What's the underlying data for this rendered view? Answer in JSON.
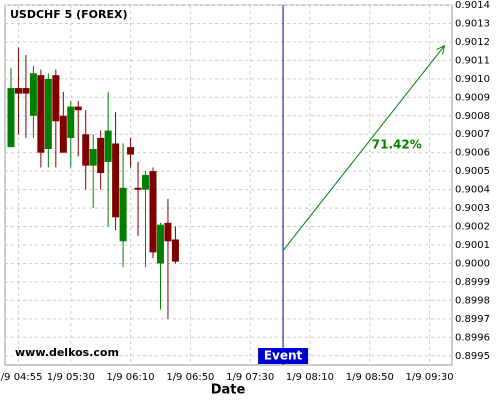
{
  "chart_data": {
    "type": "candlestick",
    "title": "USDCHF 5 (FOREX)",
    "x_label": "Date",
    "watermark": "www.delkos.com",
    "up_color": "#008000",
    "down_color": "#800000",
    "grid": true,
    "x": [
      "1/9 04:50",
      "1/9 04:55",
      "1/9 05:00",
      "1/9 05:05",
      "1/9 05:10",
      "1/9 05:15",
      "1/9 05:20",
      "1/9 05:25",
      "1/9 05:30",
      "1/9 05:35",
      "1/9 05:40",
      "1/9 05:45",
      "1/9 05:50",
      "1/9 05:55",
      "1/9 06:00",
      "1/9 06:05",
      "1/9 06:10",
      "1/9 06:15",
      "1/9 06:20",
      "1/9 06:25",
      "1/9 06:30",
      "1/9 06:35",
      "1/9 06:40"
    ],
    "open": [
      0.90063,
      0.90095,
      0.90095,
      0.9008,
      0.90102,
      0.90062,
      0.90102,
      0.9008,
      0.90068,
      0.90085,
      0.9007,
      0.90053,
      0.90068,
      0.90055,
      0.90065,
      0.90012,
      0.90063,
      0.90041,
      0.9004,
      0.9005,
      0.9,
      0.90022,
      0.90013
    ],
    "high": [
      0.90106,
      0.90117,
      0.90113,
      0.90107,
      0.90105,
      0.90103,
      0.90105,
      0.90093,
      0.90088,
      0.90088,
      0.90083,
      0.9007,
      0.90072,
      0.90093,
      0.90082,
      0.90065,
      0.90068,
      0.90055,
      0.9005,
      0.90052,
      0.90022,
      0.90035,
      0.9002
    ],
    "low": [
      0.90063,
      0.9007,
      0.90068,
      0.90068,
      0.90052,
      0.90052,
      0.90052,
      0.9006,
      0.90052,
      0.90058,
      0.9004,
      0.9003,
      0.9004,
      0.9002,
      0.90018,
      0.89998,
      0.90052,
      0.90015,
      0.89998,
      0.90003,
      0.89975,
      0.8997,
      0.9
    ],
    "close": [
      0.90095,
      0.90092,
      0.90092,
      0.90103,
      0.9006,
      0.901,
      0.90077,
      0.9006,
      0.90085,
      0.90083,
      0.90053,
      0.90062,
      0.90049,
      0.90072,
      0.90025,
      0.90041,
      0.90059,
      0.9004,
      0.90048,
      0.90006,
      0.90021,
      0.90012,
      0.90001
    ],
    "xlim": [
      "1/9 04:46",
      "1/9 09:45"
    ],
    "xticks": [
      "1/9 04:55",
      "1/9 05:30",
      "1/9 06:10",
      "1/9 06:50",
      "1/9 07:30",
      "1/9 08:10",
      "1/9 08:50",
      "1/9 09:30"
    ],
    "ylim": [
      0.89945,
      0.9014
    ],
    "yticks": [
      0.8995,
      0.8996,
      0.8997,
      0.8998,
      0.8999,
      {
        "value": 0.9,
        "label": "0.9000"
      },
      0.9001,
      0.9002,
      0.9003,
      0.9004,
      0.9005,
      0.9006,
      0.9007,
      0.9008,
      0.9009,
      {
        "value": 0.901,
        "label": "0.9010"
      },
      0.9011,
      0.9012,
      0.9013,
      0.9014
    ],
    "event": {
      "label": "Event",
      "x": "1/9 07:52",
      "color": "#0000cc"
    },
    "arrow": {
      "x": [
        "1/9 07:52",
        "1/9 09:40"
      ],
      "y": [
        0.90007,
        0.90118
      ],
      "label": "71.42%",
      "color": "#008000"
    }
  }
}
